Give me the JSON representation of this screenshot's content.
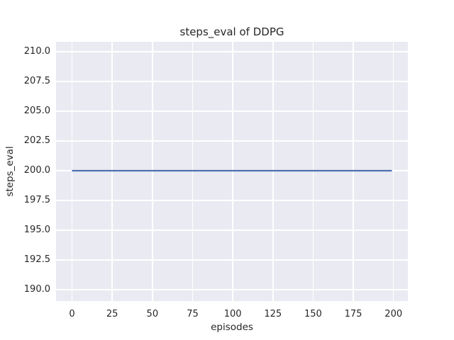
{
  "figure": {
    "background": "#ffffff"
  },
  "chart_data": {
    "type": "line",
    "title": "steps_eval of DDPG",
    "xlabel": "episodes",
    "ylabel": "steps_eval",
    "xlim": [
      -9.95,
      208.95
    ],
    "ylim": [
      189.05,
      210.83
    ],
    "xticks": [
      0,
      25,
      50,
      75,
      100,
      125,
      150,
      175,
      200
    ],
    "xtick_labels": [
      "0",
      "25",
      "50",
      "75",
      "100",
      "125",
      "150",
      "175",
      "200"
    ],
    "yticks": [
      190.0,
      192.5,
      195.0,
      197.5,
      200.0,
      202.5,
      205.0,
      207.5,
      210.0
    ],
    "ytick_labels": [
      "190.0",
      "192.5",
      "195.0",
      "197.5",
      "200.0",
      "202.5",
      "205.0",
      "207.5",
      "210.0"
    ],
    "grid": true,
    "legend_position": "none",
    "plot_background": "#eaeaf2",
    "grid_color": "#ffffff",
    "text_color": "#262626",
    "series": [
      {
        "name": "steps_eval",
        "color": "#4c72b0",
        "linewidth": 2.2,
        "x": [
          0,
          199
        ],
        "y": [
          200,
          200
        ]
      }
    ]
  }
}
